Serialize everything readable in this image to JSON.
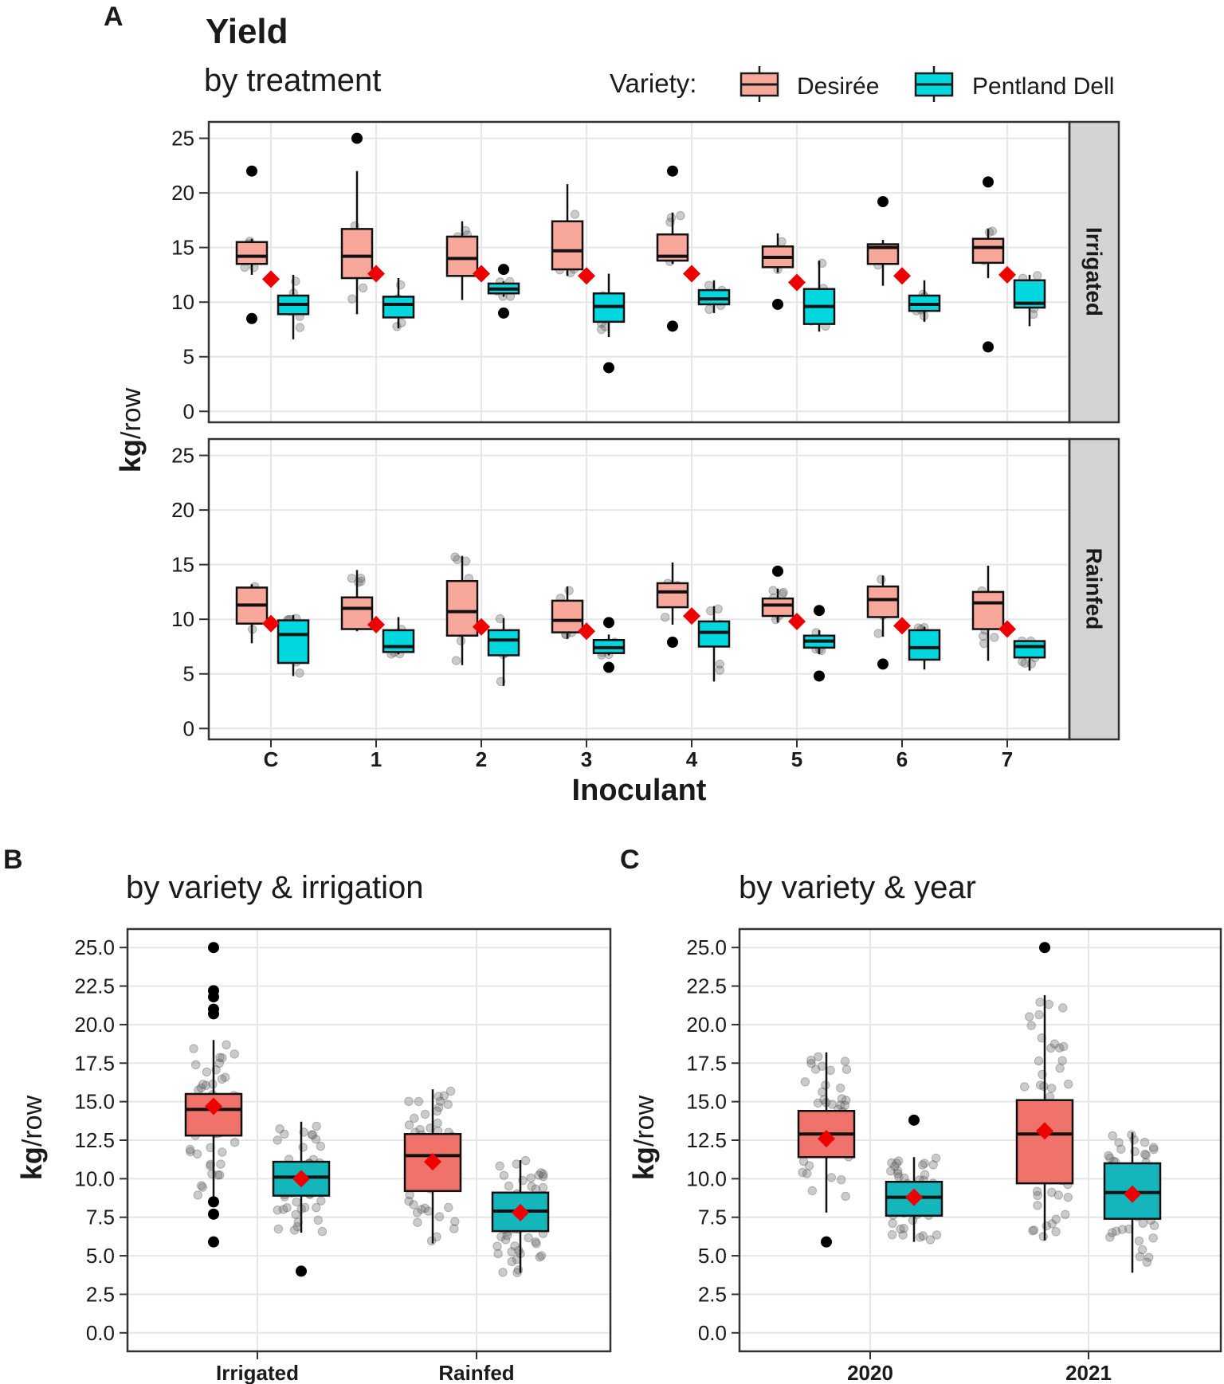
{
  "panel_labels": {
    "a": "A",
    "b": "B",
    "c": "C"
  },
  "panelA": {
    "title": "Yield",
    "subtitle": "by treatment",
    "legend": {
      "title": "Variety:",
      "entries": [
        {
          "label": "Desirée",
          "color": "#f8a79b"
        },
        {
          "label": "Pentland Dell",
          "color": "#00d7df"
        }
      ]
    },
    "ylabel_bold": "kg",
    "ylabel_rest": "/row",
    "xlabel": "Inoculant",
    "yticks": [
      "0",
      "5",
      "10",
      "15",
      "20",
      "25"
    ],
    "categories": [
      "C",
      "1",
      "2",
      "3",
      "4",
      "5",
      "6",
      "7"
    ],
    "facets": [
      "Irrigated",
      "Rainfed"
    ]
  },
  "panelB": {
    "subtitle": "by variety & irrigation",
    "ylabel_bold": "kg",
    "ylabel_rest": "/row",
    "yticks": [
      "0.0",
      "2.5",
      "5.0",
      "7.5",
      "10.0",
      "12.5",
      "15.0",
      "17.5",
      "20.0",
      "22.5",
      "25.0"
    ],
    "categories": [
      "Irrigated",
      "Rainfed"
    ]
  },
  "panelC": {
    "subtitle": "by variety & year",
    "ylabel_bold": "kg",
    "ylabel_rest": "/row",
    "yticks": [
      "0.0",
      "2.5",
      "5.0",
      "7.5",
      "10.0",
      "12.5",
      "15.0",
      "17.5",
      "20.0",
      "22.5",
      "25.0"
    ],
    "categories": [
      "2020",
      "2021"
    ]
  },
  "colors": {
    "desiree_A": "#f8a79b",
    "dell_A": "#00d7df",
    "desiree_BC": "#f0736b",
    "dell_BC": "#14b5bb",
    "mean_marker": "#ee0000",
    "strip_bg": "#d4d4d4",
    "grid": "#e6e6e6"
  },
  "chart_data": [
    {
      "type": "box",
      "panel": "A",
      "title": "Yield",
      "subtitle": "by treatment",
      "xlabel": "Inoculant",
      "ylabel": "kg/row",
      "ylim": [
        -1,
        26.5
      ],
      "categories": [
        "C",
        "1",
        "2",
        "3",
        "4",
        "5",
        "6",
        "7"
      ],
      "facets": [
        {
          "name": "Irrigated",
          "series": [
            {
              "name": "Desirée",
              "boxes": [
                {
                  "q1": 13.5,
                  "median": 14.2,
                  "q3": 15.5,
                  "lo": 12.5,
                  "hi": 15.8,
                  "outliers": [
                    22,
                    8.5
                  ]
                },
                {
                  "q1": 12.2,
                  "median": 14.2,
                  "q3": 16.7,
                  "lo": 8.9,
                  "hi": 22,
                  "outliers": [
                    25
                  ]
                },
                {
                  "q1": 12.4,
                  "median": 14,
                  "q3": 16,
                  "lo": 10.2,
                  "hi": 17.4,
                  "outliers": []
                },
                {
                  "q1": 13,
                  "median": 14.7,
                  "q3": 17.4,
                  "lo": 12.4,
                  "hi": 20.8,
                  "outliers": []
                },
                {
                  "q1": 13.8,
                  "median": 14.2,
                  "q3": 16.2,
                  "lo": 13.5,
                  "hi": 18.2,
                  "outliers": [
                    22,
                    7.8
                  ]
                },
                {
                  "q1": 13.2,
                  "median": 14.1,
                  "q3": 15.1,
                  "lo": 12.7,
                  "hi": 16.3,
                  "outliers": [
                    9.8
                  ]
                },
                {
                  "q1": 13.5,
                  "median": 15,
                  "q3": 15.3,
                  "lo": 11.5,
                  "hi": 15.7,
                  "outliers": [
                    19.2
                  ]
                },
                {
                  "q1": 13.6,
                  "median": 15,
                  "q3": 15.8,
                  "lo": 12.2,
                  "hi": 16.7,
                  "outliers": [
                    21,
                    5.9
                  ]
                }
              ]
            },
            {
              "name": "Pentland Dell",
              "boxes": [
                {
                  "q1": 8.9,
                  "median": 9.8,
                  "q3": 10.6,
                  "lo": 6.6,
                  "hi": 12.5,
                  "outliers": []
                },
                {
                  "q1": 8.6,
                  "median": 9.8,
                  "q3": 10.5,
                  "lo": 7.6,
                  "hi": 12.2,
                  "outliers": []
                },
                {
                  "q1": 10.8,
                  "median": 11.2,
                  "q3": 11.7,
                  "lo": 10.5,
                  "hi": 11.9,
                  "outliers": [
                    13,
                    9
                  ]
                },
                {
                  "q1": 8.2,
                  "median": 9.6,
                  "q3": 10.8,
                  "lo": 6.8,
                  "hi": 12.6,
                  "outliers": [
                    4
                  ]
                },
                {
                  "q1": 9.8,
                  "median": 10.3,
                  "q3": 11.1,
                  "lo": 9,
                  "hi": 12,
                  "outliers": []
                },
                {
                  "q1": 8,
                  "median": 9.6,
                  "q3": 11.2,
                  "lo": 7.3,
                  "hi": 13.8,
                  "outliers": []
                },
                {
                  "q1": 9.2,
                  "median": 9.8,
                  "q3": 10.6,
                  "lo": 8.2,
                  "hi": 12,
                  "outliers": []
                },
                {
                  "q1": 9.5,
                  "median": 9.9,
                  "q3": 12,
                  "lo": 7.8,
                  "hi": 12.5,
                  "outliers": []
                }
              ]
            },
            {
              "name": "Mean",
              "values": [
                12.1,
                12.6,
                12.6,
                12.4,
                12.6,
                11.8,
                12.4,
                12.5
              ]
            }
          ]
        },
        {
          "name": "Rainfed",
          "series": [
            {
              "name": "Desirée",
              "boxes": [
                {
                  "q1": 9.6,
                  "median": 11.3,
                  "q3": 12.9,
                  "lo": 7.8,
                  "hi": 13.2,
                  "outliers": []
                },
                {
                  "q1": 9.1,
                  "median": 11,
                  "q3": 12,
                  "lo": 8.9,
                  "hi": 14.5,
                  "outliers": []
                },
                {
                  "q1": 8.5,
                  "median": 10.7,
                  "q3": 13.5,
                  "lo": 5.8,
                  "hi": 15.8,
                  "outliers": []
                },
                {
                  "q1": 8.8,
                  "median": 9.9,
                  "q3": 11.7,
                  "lo": 8.2,
                  "hi": 13,
                  "outliers": []
                },
                {
                  "q1": 11.1,
                  "median": 12.5,
                  "q3": 13.3,
                  "lo": 9.5,
                  "hi": 15.2,
                  "outliers": [
                    7.9
                  ]
                },
                {
                  "q1": 10.3,
                  "median": 11.3,
                  "q3": 11.9,
                  "lo": 9.7,
                  "hi": 12.8,
                  "outliers": [
                    14.4
                  ]
                },
                {
                  "q1": 10.2,
                  "median": 11.8,
                  "q3": 13,
                  "lo": 8.4,
                  "hi": 14,
                  "outliers": [
                    5.9
                  ]
                },
                {
                  "q1": 9.1,
                  "median": 11.5,
                  "q3": 12.5,
                  "lo": 6.2,
                  "hi": 14.9,
                  "outliers": []
                }
              ]
            },
            {
              "name": "Pentland Dell",
              "boxes": [
                {
                  "q1": 6,
                  "median": 8.6,
                  "q3": 9.9,
                  "lo": 4.8,
                  "hi": 10.4,
                  "outliers": []
                },
                {
                  "q1": 7,
                  "median": 7.5,
                  "q3": 9,
                  "lo": 6.8,
                  "hi": 10.2,
                  "outliers": []
                },
                {
                  "q1": 6.7,
                  "median": 8.1,
                  "q3": 9,
                  "lo": 3.9,
                  "hi": 10.1,
                  "outliers": []
                },
                {
                  "q1": 6.9,
                  "median": 7.4,
                  "q3": 8.1,
                  "lo": 6.7,
                  "hi": 8.6,
                  "outliers": [
                    9.7,
                    5.6
                  ]
                },
                {
                  "q1": 7.5,
                  "median": 8.8,
                  "q3": 9.8,
                  "lo": 4.3,
                  "hi": 11.2,
                  "outliers": []
                },
                {
                  "q1": 7.4,
                  "median": 8,
                  "q3": 8.5,
                  "lo": 6.8,
                  "hi": 9,
                  "outliers": [
                    10.8,
                    4.8
                  ]
                },
                {
                  "q1": 6.3,
                  "median": 7.4,
                  "q3": 9,
                  "lo": 5.4,
                  "hi": 9.3,
                  "outliers": []
                },
                {
                  "q1": 6.5,
                  "median": 7.5,
                  "q3": 8,
                  "lo": 5.3,
                  "hi": 8,
                  "outliers": []
                }
              ]
            },
            {
              "name": "Mean",
              "values": [
                9.6,
                9.5,
                9.3,
                8.9,
                10.3,
                9.8,
                9.4,
                9.1
              ]
            }
          ]
        }
      ]
    },
    {
      "type": "box",
      "panel": "B",
      "subtitle": "by variety & irrigation",
      "ylabel": "kg/row",
      "ylim": [
        -1.2,
        26.2
      ],
      "categories": [
        "Irrigated",
        "Rainfed"
      ],
      "series": [
        {
          "name": "Desirée",
          "boxes": [
            {
              "q1": 12.8,
              "median": 14.5,
              "q3": 15.5,
              "lo": 8.5,
              "hi": 19,
              "outliers": [
                25,
                22.2,
                21.8,
                21,
                20.7,
                8.5,
                7.7,
                5.9
              ],
              "mean": 14.7
            },
            {
              "q1": 9.2,
              "median": 11.5,
              "q3": 12.9,
              "lo": 5.8,
              "hi": 15.8,
              "outliers": [],
              "mean": 11.1
            }
          ]
        },
        {
          "name": "Pentland Dell",
          "boxes": [
            {
              "q1": 8.9,
              "median": 10.1,
              "q3": 11.1,
              "lo": 6.5,
              "hi": 13.7,
              "outliers": [
                4
              ],
              "mean": 10
            },
            {
              "q1": 6.6,
              "median": 7.9,
              "q3": 9.1,
              "lo": 3.9,
              "hi": 11.2,
              "outliers": [],
              "mean": 7.8
            }
          ]
        }
      ]
    },
    {
      "type": "box",
      "panel": "C",
      "subtitle": "by variety & year",
      "ylabel": "kg/row",
      "ylim": [
        -1.2,
        26.2
      ],
      "categories": [
        "2020",
        "2021"
      ],
      "series": [
        {
          "name": "Desirée",
          "boxes": [
            {
              "q1": 11.4,
              "median": 12.9,
              "q3": 14.4,
              "lo": 7.8,
              "hi": 18.2,
              "outliers": [
                5.9
              ],
              "mean": 12.6
            },
            {
              "q1": 9.7,
              "median": 12.9,
              "q3": 15.1,
              "lo": 6,
              "hi": 21.9,
              "outliers": [
                25
              ],
              "mean": 13.1
            }
          ]
        },
        {
          "name": "Pentland Dell",
          "boxes": [
            {
              "q1": 7.6,
              "median": 8.8,
              "q3": 9.8,
              "lo": 5.9,
              "hi": 11.4,
              "outliers": [
                13.8
              ],
              "mean": 8.8
            },
            {
              "q1": 7.4,
              "median": 9.1,
              "q3": 11,
              "lo": 3.9,
              "hi": 13,
              "outliers": [],
              "mean": 9
            }
          ]
        }
      ]
    }
  ]
}
